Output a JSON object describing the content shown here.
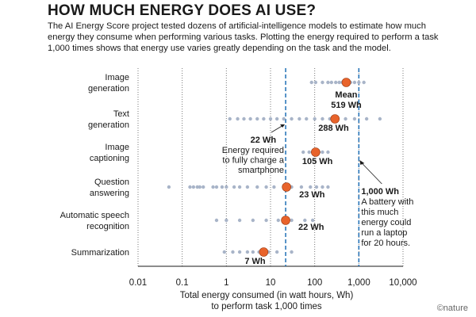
{
  "chart_data": {
    "type": "scatter",
    "title": "HOW MUCH ENERGY DOES AI USE?",
    "subtitle": "The AI Energy Score project tested dozens of artificial-intelligence models to estimate how much energy they consume when performing various tasks. Plotting the energy required to perform a task 1,000 times shows that energy use varies greatly depending on the task and the model.",
    "xlabel_line1": "Total energy consumed (in watt hours, Wh)",
    "xlabel_line2": "to perform task 1,000 times",
    "x_scale": "log",
    "xlim": [
      0.01,
      10000
    ],
    "x_ticks": [
      {
        "value": 0.01,
        "label": "0.01"
      },
      {
        "value": 0.1,
        "label": "0.1"
      },
      {
        "value": 1,
        "label": "1"
      },
      {
        "value": 10,
        "label": "10"
      },
      {
        "value": 100,
        "label": "100"
      },
      {
        "value": 1000,
        "label": "1,000"
      },
      {
        "value": 10000,
        "label": "10,000"
      }
    ],
    "grid": "vertical dotted",
    "categories": [
      {
        "lines": [
          "Image",
          "generation"
        ],
        "mean": 519,
        "mean_label": [
          "Mean",
          "519 Wh"
        ],
        "models": [
          85,
          105,
          150,
          200,
          240,
          300,
          360,
          420,
          500,
          650,
          800,
          1000,
          1300
        ]
      },
      {
        "lines": [
          "Text",
          "generation"
        ],
        "mean": 288,
        "mean_label": [
          "288 Wh"
        ],
        "models": [
          1.2,
          1.8,
          2.5,
          3.5,
          5,
          7,
          10,
          14,
          20,
          30,
          45,
          65,
          100,
          150,
          220,
          330,
          500,
          800,
          1500,
          3000
        ]
      },
      {
        "lines": [
          "Image",
          "captioning"
        ],
        "mean": 105,
        "mean_label": [
          "105 Wh"
        ],
        "models": [
          55,
          75,
          90,
          125,
          150,
          200
        ]
      },
      {
        "lines": [
          "Question",
          "answering"
        ],
        "mean": 23,
        "mean_label": [
          "23 Wh"
        ],
        "models": [
          0.05,
          0.15,
          0.18,
          0.22,
          0.25,
          0.3,
          0.5,
          0.6,
          0.8,
          1,
          1.5,
          2,
          3,
          5,
          8,
          12,
          20,
          30,
          50,
          80,
          110,
          150,
          200
        ]
      },
      {
        "lines": [
          "Automatic speech",
          "recognition"
        ],
        "mean": 22,
        "mean_label": [
          "22 Wh"
        ],
        "models": [
          0.6,
          1,
          2,
          4,
          8,
          15,
          30,
          60,
          90
        ]
      },
      {
        "lines": [
          "Summarization"
        ],
        "mean": 7,
        "mean_label": [
          "7 Wh"
        ],
        "models": [
          0.9,
          1.4,
          2,
          3,
          4,
          5.5,
          9,
          14,
          30
        ]
      }
    ],
    "reference_lines": [
      {
        "value": 22,
        "label_bold": "22 Wh",
        "label": [
          "Energy required",
          "to fully charge a",
          "smartphone"
        ]
      },
      {
        "value": 1000,
        "label_bold": "1,000 Wh",
        "label": [
          "A battery with",
          "this much",
          "energy could",
          "run a laptop",
          "for 20 hours."
        ]
      }
    ],
    "colors": {
      "mean": "#e8632b",
      "model": "#a8b4c8",
      "reference": "#1f6fb5",
      "grid": "#777777"
    },
    "credit": "©nature"
  }
}
